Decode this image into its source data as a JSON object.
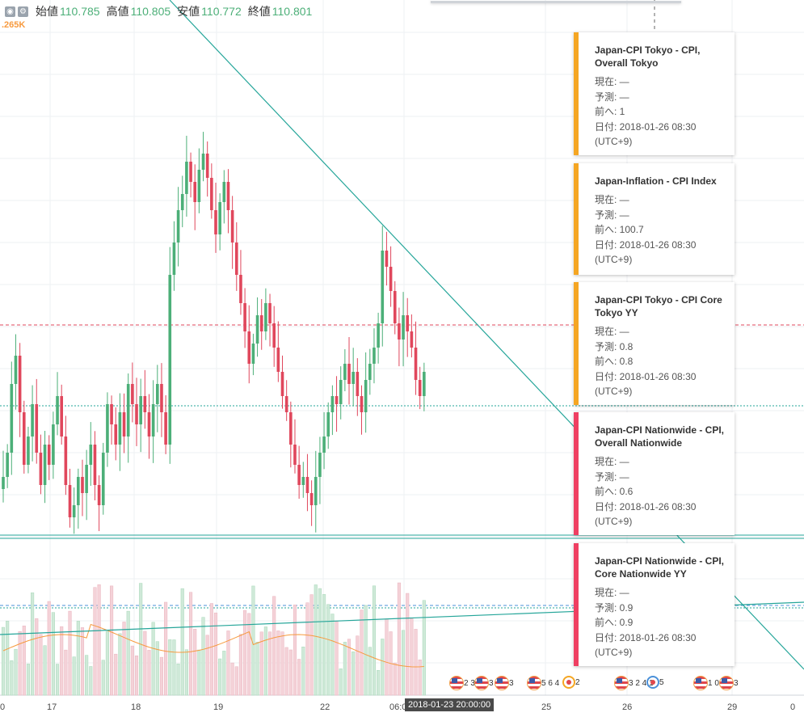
{
  "ohlc": {
    "open_label": "始値",
    "open": "110.785",
    "high_label": "高値",
    "high": "110.805",
    "low_label": "安値",
    "low": "110.772",
    "close_label": "終値",
    "close": "110.801"
  },
  "volume_label": ".265K",
  "xaxis": {
    "labels": [
      "0",
      "17",
      "18",
      "19",
      "22",
      "06:0",
      "25",
      "26",
      "29",
      "0"
    ],
    "cursor_badge": "2018-01-23 20:00:00"
  },
  "events": [
    {
      "text": "2 3",
      "icon": "us-flag-icon"
    },
    {
      "text": "3",
      "icon": "us-flag-icon"
    },
    {
      "text": "3",
      "icon": "us-flag-icon"
    },
    {
      "text": "5 6 4",
      "icon": "us-flag-icon"
    },
    {
      "text": "2",
      "icon": "japan-event-icon"
    },
    {
      "text": "3 2 4 1",
      "icon": "us-flag-icon"
    },
    {
      "text": "5",
      "icon": "japan-event-icon-blue"
    },
    {
      "text": "1 0 2",
      "icon": "us-flag-icon"
    },
    {
      "text": "3",
      "icon": "us-flag-icon"
    }
  ],
  "cards": [
    {
      "title": "Japan-CPI Tokyo - CPI, Overall Tokyo",
      "current": "現在: —",
      "forecast": "予測: —",
      "previous": "前へ: 1",
      "date": "日付: 2018-01-26 08:30",
      "tz": "(UTC+9)",
      "color": "#f5a623"
    },
    {
      "title": "Japan-Inflation - CPI Index",
      "current": "現在: —",
      "forecast": "予測: —",
      "previous": "前へ: 100.7",
      "date": "日付: 2018-01-26 08:30",
      "tz": "(UTC+9)",
      "color": "#f5a623"
    },
    {
      "title": "Japan-CPI Tokyo - CPI Core Tokyo YY",
      "current": "現在: —",
      "forecast": "予測: 0.8",
      "previous": "前へ: 0.8",
      "date": "日付: 2018-01-26 08:30",
      "tz": "(UTC+9)",
      "color": "#f5a623"
    },
    {
      "title": "Japan-CPI Nationwide - CPI, Overall Nationwide",
      "current": "現在: —",
      "forecast": "予測: —",
      "previous": "前へ: 0.6",
      "date": "日付: 2018-01-26 08:30",
      "tz": "(UTC+9)",
      "color": "#ef3f62"
    },
    {
      "title": "Japan-CPI Nationwide - CPI, Core Nationwide YY",
      "current": "現在: —",
      "forecast": "予測: 0.9",
      "previous": "前へ: 0.9",
      "date": "日付: 2018-01-26 08:30",
      "tz": "(UTC+9)",
      "color": "#ef3f62"
    }
  ],
  "colors": {
    "up": "#4caf78",
    "down": "#e0475c",
    "trend": "#26a69a",
    "dashed_red": "#e0475c",
    "ma": "#f79a3e"
  },
  "chart_data": {
    "type": "candlestick",
    "ohlc_last": {
      "open": 110.785,
      "high": 110.805,
      "low": 110.772,
      "close": 110.801
    },
    "x_tick_labels": [
      "0",
      "17",
      "18",
      "19",
      "22",
      "06:0",
      "25",
      "26",
      "29",
      "0"
    ],
    "candles_close_series": [
      0.12,
      0.18,
      0.35,
      0.42,
      0.28,
      0.15,
      0.22,
      0.3,
      0.18,
      0.1,
      0.2,
      0.15,
      0.25,
      0.32,
      0.22,
      0.1,
      0.02,
      0.05,
      0.12,
      0.08,
      0.15,
      0.2,
      0.1,
      0.05,
      0.18,
      0.3,
      0.25,
      0.2,
      0.28,
      0.22,
      0.35,
      0.3,
      0.25,
      0.32,
      0.28,
      0.22,
      0.3,
      0.35,
      0.28,
      0.2,
      0.62,
      0.7,
      0.78,
      0.82,
      0.9,
      0.85,
      0.8,
      0.88,
      0.92,
      0.86,
      0.78,
      0.72,
      0.8,
      0.85,
      0.78,
      0.7,
      0.62,
      0.55,
      0.48,
      0.4,
      0.45,
      0.52,
      0.48,
      0.55,
      0.5,
      0.44,
      0.38,
      0.32,
      0.28,
      0.2,
      0.15,
      0.1,
      0.12,
      0.08,
      0.05,
      0.12,
      0.18,
      0.22,
      0.28,
      0.32,
      0.3,
      0.36,
      0.4,
      0.35,
      0.38,
      0.32,
      0.28,
      0.36,
      0.4,
      0.44,
      0.5,
      0.68,
      0.64,
      0.58,
      0.5,
      0.46,
      0.52,
      0.48,
      0.44,
      0.36,
      0.32,
      0.38
    ]
  }
}
